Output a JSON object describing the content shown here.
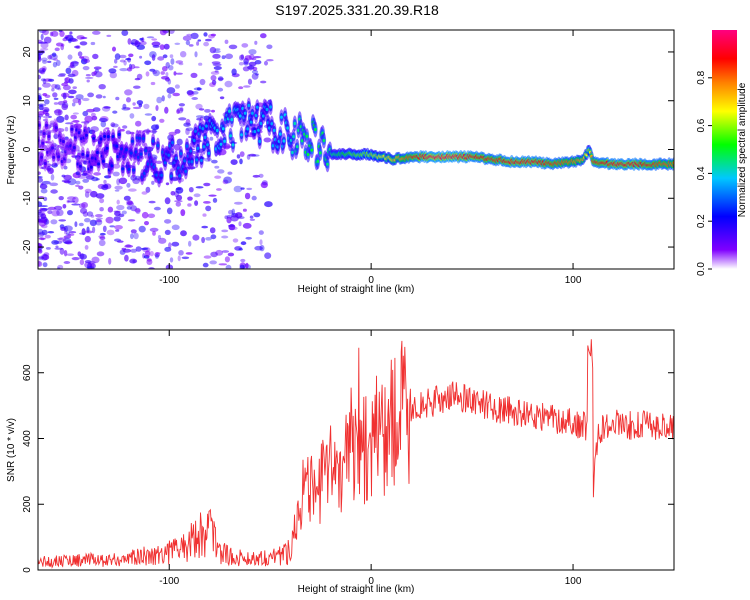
{
  "figure_title": "S197.2025.331.20.39.R18",
  "chart_data": [
    {
      "type": "heatmap",
      "title": "S197.2025.331.20.39.R18",
      "xlabel": "Height of straight line (km)",
      "ylabel": "Frequency (Hz)",
      "xlim": [
        -165,
        150
      ],
      "ylim": [
        -24.5,
        24.5
      ],
      "xticks": [
        -100,
        0,
        100
      ],
      "yticks": [
        -20,
        -10,
        0,
        10,
        20
      ],
      "colorbar": {
        "label": "Normalized spectral amplitude",
        "range": [
          0,
          1
        ],
        "ticks": [
          0.0,
          0.2,
          0.4,
          0.6,
          0.8
        ],
        "tick_labels": [
          "0.0",
          "0.2",
          "0.4",
          "0.6",
          "0.8"
        ],
        "colors": [
          "#ffffff",
          "#8000ff",
          "#0000ff",
          "#00c8ff",
          "#00ff00",
          "#ffff00",
          "#ff8000",
          "#ff0000",
          "#ff0080"
        ]
      },
      "ridge": {
        "x": [
          -160,
          -140,
          -120,
          -100,
          -90,
          -80,
          -70,
          -60,
          -50,
          -40,
          -30,
          -20,
          -10,
          0,
          10,
          20,
          30,
          40,
          50,
          60,
          70,
          80,
          90,
          100,
          105,
          108,
          110,
          120,
          130,
          140,
          150
        ],
        "freq": [
          1,
          0,
          -1,
          -3,
          0,
          2,
          4,
          6,
          5,
          3,
          2,
          -1,
          -1,
          -1,
          -2,
          -1.5,
          -1.5,
          -1.5,
          -1.5,
          -2,
          -2.5,
          -2.5,
          -3,
          -2.5,
          -2,
          0,
          -2.5,
          -3,
          -3,
          -3,
          -3
        ],
        "amplitude": [
          0.15,
          0.2,
          0.25,
          0.3,
          0.3,
          0.35,
          0.4,
          0.35,
          0.35,
          0.4,
          0.5,
          0.45,
          0.55,
          0.6,
          0.7,
          0.85,
          0.95,
          0.95,
          0.9,
          0.85,
          0.9,
          0.9,
          0.85,
          0.8,
          0.75,
          0.6,
          0.85,
          0.9,
          0.9,
          0.85,
          0.8
        ]
      }
    },
    {
      "type": "line",
      "xlabel": "Height of straight line (km)",
      "ylabel": "SNR (10 * v/v)",
      "xlim": [
        -165,
        150
      ],
      "ylim": [
        0,
        730
      ],
      "xticks": [
        -100,
        0,
        100
      ],
      "yticks": [
        0,
        200,
        400,
        600
      ],
      "series": [
        {
          "name": "SNR",
          "color": "#f03030",
          "x": [
            -165,
            -150,
            -140,
            -130,
            -120,
            -110,
            -100,
            -90,
            -85,
            -80,
            -75,
            -70,
            -60,
            -50,
            -45,
            -40,
            -37,
            -35,
            -30,
            -25,
            -20,
            -15,
            -10,
            -7,
            -5,
            0,
            5,
            10,
            15,
            20,
            25,
            30,
            35,
            40,
            45,
            50,
            55,
            60,
            70,
            80,
            90,
            100,
            105,
            108,
            110,
            112,
            115,
            120,
            130,
            140,
            150
          ],
          "y": [
            25,
            30,
            30,
            30,
            35,
            45,
            55,
            80,
            110,
            130,
            60,
            40,
            35,
            40,
            45,
            60,
            160,
            240,
            230,
            260,
            300,
            320,
            370,
            430,
            360,
            380,
            420,
            450,
            470,
            490,
            500,
            510,
            520,
            530,
            525,
            520,
            505,
            495,
            480,
            470,
            460,
            450,
            440,
            420,
            230,
            400,
            440,
            445,
            440,
            440,
            435
          ]
        }
      ]
    }
  ]
}
